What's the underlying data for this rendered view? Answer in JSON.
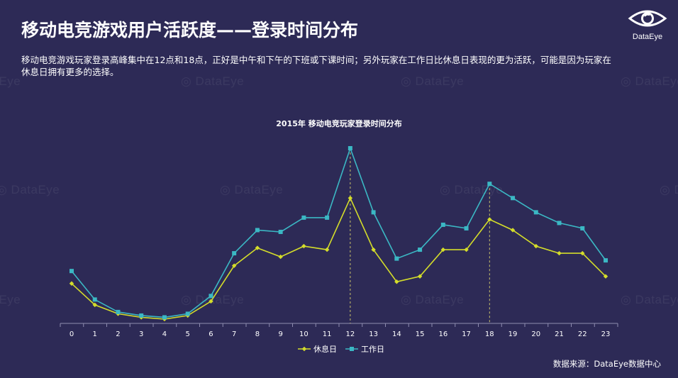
{
  "title": "移动电竞游戏用户活跃度——登录时间分布",
  "description": "移动电竞游戏玩家登录高峰集中在12点和18点，正好是中午和下午的下班或下课时间；另外玩家在工作日比休息日表现的更为活跃，可能是因为玩家在休息日拥有更多的选择。",
  "brand": {
    "name": "DataEye",
    "icon": "eye-logo-icon"
  },
  "watermark_text": "DataEye",
  "source": "数据来源：DataEye数据中心",
  "colors": {
    "background": "#2d2a56",
    "weekend": "#d4dd2a",
    "workday": "#3bb8c4",
    "axis": "#8f8db0"
  },
  "chart_data": {
    "type": "line",
    "title": "2015年 移动电竞玩家登录时间分布",
    "x": [
      "0",
      "1",
      "2",
      "3",
      "4",
      "5",
      "6",
      "7",
      "8",
      "9",
      "10",
      "11",
      "12",
      "13",
      "14",
      "15",
      "16",
      "17",
      "18",
      "19",
      "20",
      "21",
      "22",
      "23"
    ],
    "ylim": [
      0,
      100
    ],
    "y_axis_visible": false,
    "grid": false,
    "legend": "bottom-center",
    "reference_lines_x": [
      "12",
      "18"
    ],
    "series": [
      {
        "name": "休息日",
        "marker": "diamond",
        "values": [
          24,
          12,
          7,
          5,
          4,
          6,
          14,
          34,
          44,
          39,
          45,
          43,
          72,
          43,
          25,
          28,
          43,
          43,
          60,
          54,
          45,
          41,
          41,
          28
        ]
      },
      {
        "name": "工作日",
        "marker": "square",
        "values": [
          31,
          15,
          8,
          6,
          5,
          7,
          17,
          41,
          54,
          53,
          61,
          61,
          100,
          64,
          38,
          43,
          57,
          55,
          80,
          72,
          64,
          58,
          55,
          37
        ]
      }
    ]
  }
}
